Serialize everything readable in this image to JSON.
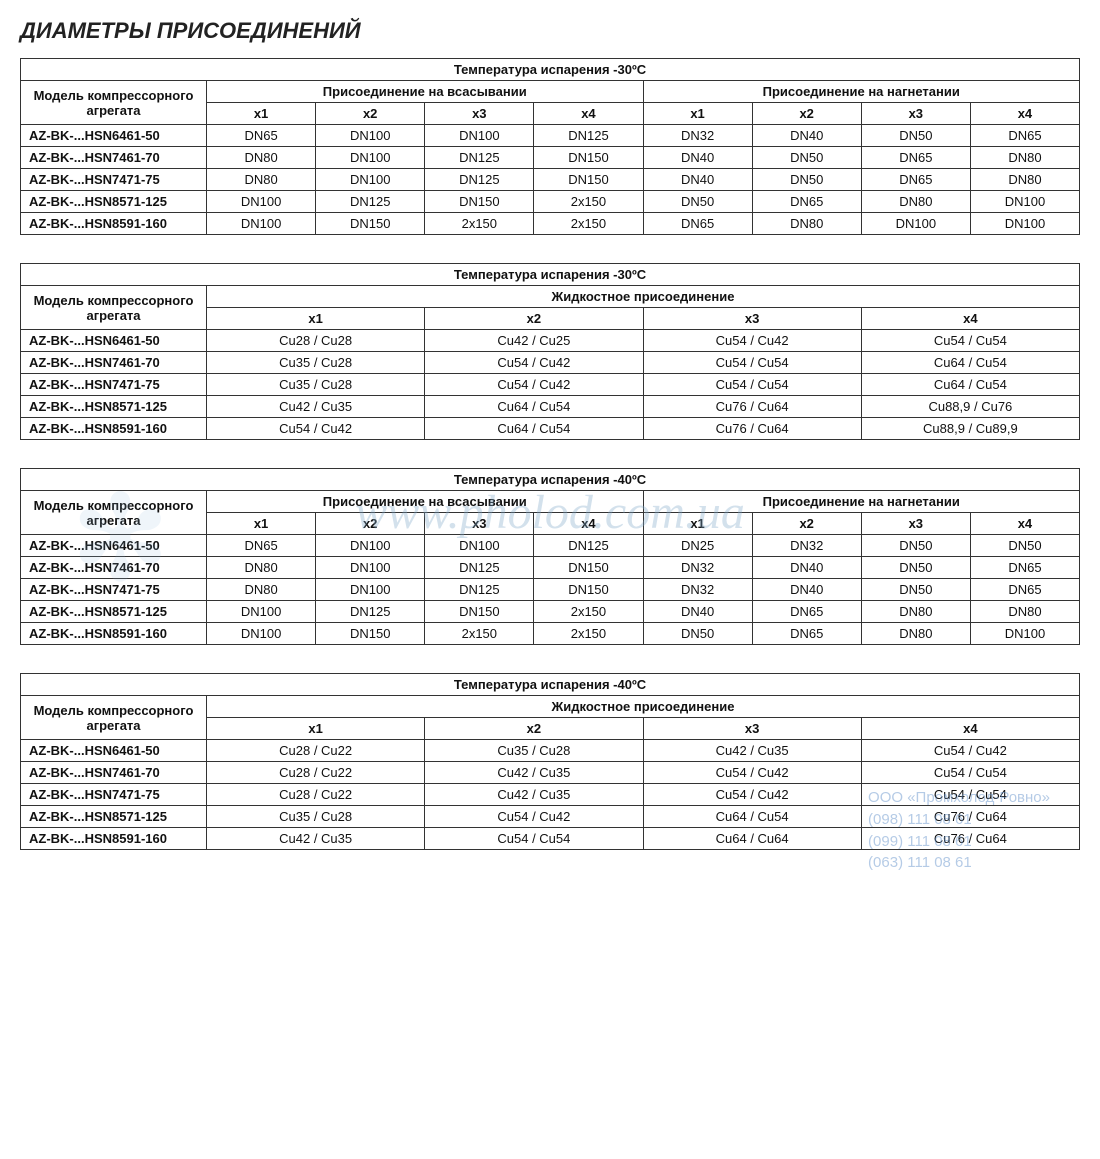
{
  "page_title": "ДИАМЕТРЫ ПРИСОЕДИНЕНИЙ",
  "watermark_url": "www.pholod.com.ua",
  "stamp": {
    "company": "ООО «Промхолод-Ровно»",
    "phone1": "(098) 111 08 61",
    "phone2": "(099) 111 08 61",
    "phone3": "(063) 111 08 61"
  },
  "models": [
    "AZ-BK-...HSN6461-50",
    "AZ-BK-...HSN7461-70",
    "AZ-BK-...HSN7471-75",
    "AZ-BK-...HSN8571-125",
    "AZ-BK-...HSN8591-160"
  ],
  "labels": {
    "model_header": "Модель компрессорного агрегата",
    "suction": "Присоединение на всасывании",
    "discharge": "Присоединение на нагнетании",
    "liquid": "Жидкостное присоединение",
    "x1": "x1",
    "x2": "x2",
    "x3": "x3",
    "x4": "x4",
    "temp_minus30": "Температура испарения -30ºС",
    "temp_minus40": "Температура испарения -40ºС"
  },
  "table1": {
    "title_key": "temp_minus30",
    "type": "suction_discharge",
    "rows": [
      [
        "DN65",
        "DN100",
        "DN100",
        "DN125",
        "DN32",
        "DN40",
        "DN50",
        "DN65"
      ],
      [
        "DN80",
        "DN100",
        "DN125",
        "DN150",
        "DN40",
        "DN50",
        "DN65",
        "DN80"
      ],
      [
        "DN80",
        "DN100",
        "DN125",
        "DN150",
        "DN40",
        "DN50",
        "DN65",
        "DN80"
      ],
      [
        "DN100",
        "DN125",
        "DN150",
        "2x150",
        "DN50",
        "DN65",
        "DN80",
        "DN100"
      ],
      [
        "DN100",
        "DN150",
        "2x150",
        "2x150",
        "DN65",
        "DN80",
        "DN100",
        "DN100"
      ]
    ]
  },
  "table2": {
    "title_key": "temp_minus30",
    "type": "liquid",
    "rows": [
      [
        "Cu28 / Cu28",
        "Cu42 / Cu25",
        "Cu54 / Cu42",
        "Cu54 / Cu54"
      ],
      [
        "Cu35 / Cu28",
        "Cu54 / Cu42",
        "Cu54 / Cu54",
        "Cu64 / Cu54"
      ],
      [
        "Cu35 / Cu28",
        "Cu54 / Cu42",
        "Cu54 / Cu54",
        "Cu64 / Cu54"
      ],
      [
        "Cu42 / Cu35",
        "Cu64 / Cu54",
        "Cu76 / Cu64",
        "Cu88,9 / Cu76"
      ],
      [
        "Cu54 / Cu42",
        "Cu64 / Cu54",
        "Cu76 / Cu64",
        "Cu88,9 / Cu89,9"
      ]
    ]
  },
  "table3": {
    "title_key": "temp_minus40",
    "type": "suction_discharge",
    "rows": [
      [
        "DN65",
        "DN100",
        "DN100",
        "DN125",
        "DN25",
        "DN32",
        "DN50",
        "DN50"
      ],
      [
        "DN80",
        "DN100",
        "DN125",
        "DN150",
        "DN32",
        "DN40",
        "DN50",
        "DN65"
      ],
      [
        "DN80",
        "DN100",
        "DN125",
        "DN150",
        "DN32",
        "DN40",
        "DN50",
        "DN65"
      ],
      [
        "DN100",
        "DN125",
        "DN150",
        "2x150",
        "DN40",
        "DN65",
        "DN80",
        "DN80"
      ],
      [
        "DN100",
        "DN150",
        "2x150",
        "2x150",
        "DN50",
        "DN65",
        "DN80",
        "DN100"
      ]
    ]
  },
  "table4": {
    "title_key": "temp_minus40",
    "type": "liquid",
    "rows": [
      [
        "Cu28 / Cu22",
        "Cu35 / Cu28",
        "Cu42 / Cu35",
        "Cu54 / Cu42"
      ],
      [
        "Cu28 / Cu22",
        "Cu42 / Cu35",
        "Cu54 / Cu42",
        "Cu54 / Cu54"
      ],
      [
        "Cu28 / Cu22",
        "Cu42 / Cu35",
        "Cu54 / Cu42",
        "Cu54 / Cu54"
      ],
      [
        "Cu35 / Cu28",
        "Cu54 / Cu42",
        "Cu64 / Cu54",
        "Cu76 / Cu64"
      ],
      [
        "Cu42 / Cu35",
        "Cu54 / Cu54",
        "Cu64 / Cu64",
        "Cu76 / Cu64"
      ]
    ]
  },
  "colors": {
    "text": "#111111",
    "border": "#333333",
    "watermark": "rgba(130,170,200,0.35)",
    "stamp": "rgba(90,140,200,0.45)"
  }
}
